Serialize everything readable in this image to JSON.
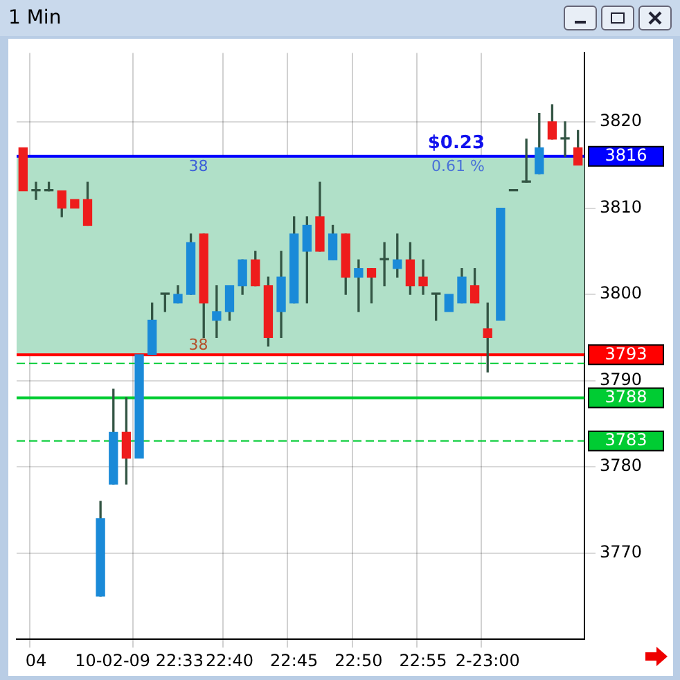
{
  "chart_data": {
    "type": "candlestick",
    "title": "1 Min",
    "categories": [
      null,
      "04",
      null,
      null,
      null,
      null,
      null,
      null,
      null,
      "10-02-09 22:33",
      null,
      null,
      null,
      null,
      null,
      null,
      "22:40",
      null,
      null,
      null,
      null,
      "22:45",
      null,
      null,
      null,
      null,
      "22:50",
      null,
      null,
      null,
      null,
      "22:55",
      null,
      null,
      null,
      null,
      "2-23:00",
      null,
      null,
      null,
      null,
      null,
      null,
      null
    ],
    "ohlc": [
      [
        3817,
        3817,
        3812,
        3812
      ],
      [
        3812,
        3813,
        3811,
        3812
      ],
      [
        3812,
        3813,
        3812,
        3812
      ],
      [
        3812,
        3812,
        3809,
        3810
      ],
      [
        3811,
        3811,
        3810,
        3810
      ],
      [
        3811,
        3813,
        3808,
        3808
      ],
      [
        3765,
        3776,
        3765,
        3774
      ],
      [
        3778,
        3789,
        3778,
        3784
      ],
      [
        3784,
        3788,
        3778,
        3781
      ],
      [
        3781,
        3793,
        3781,
        3793
      ],
      [
        3793,
        3799,
        3793,
        3797
      ],
      [
        3800,
        3800,
        3798,
        3800
      ],
      [
        3799,
        3801,
        3799,
        3800
      ],
      [
        3800,
        3807,
        3800,
        3806
      ],
      [
        3807,
        3807,
        3795,
        3799
      ],
      [
        3797,
        3801,
        3795,
        3798
      ],
      [
        3798,
        3801,
        3797,
        3801
      ],
      [
        3801,
        3804,
        3800,
        3804
      ],
      [
        3804,
        3805,
        3801,
        3801
      ],
      [
        3801,
        3802,
        3794,
        3795
      ],
      [
        3798,
        3805,
        3795,
        3802
      ],
      [
        3799,
        3809,
        3799,
        3807
      ],
      [
        3805,
        3809,
        3799,
        3808
      ],
      [
        3809,
        3813,
        3805,
        3805
      ],
      [
        3804,
        3808,
        3804,
        3807
      ],
      [
        3807,
        3807,
        3800,
        3802
      ],
      [
        3802,
        3804,
        3798,
        3803
      ],
      [
        3803,
        3803,
        3799,
        3802
      ],
      [
        3804,
        3806,
        3801,
        3804
      ],
      [
        3803,
        3807,
        3802,
        3804
      ],
      [
        3804,
        3806,
        3800,
        3801
      ],
      [
        3802,
        3804,
        3800,
        3801
      ],
      [
        3800,
        3800,
        3797,
        3800
      ],
      [
        3798,
        3800,
        3798,
        3800
      ],
      [
        3799,
        3803,
        3799,
        3802
      ],
      [
        3801,
        3803,
        3799,
        3799
      ],
      [
        3796,
        3799,
        3791,
        3795
      ],
      [
        3797,
        3810,
        3797,
        3810
      ],
      [
        3812,
        3812,
        3812,
        3812
      ],
      [
        3813,
        3818,
        3813,
        3813
      ],
      [
        3814,
        3821,
        3814,
        3817
      ],
      [
        3820,
        3822,
        3818,
        3818
      ],
      [
        3818,
        3820,
        3816,
        3818
      ],
      [
        3817,
        3819,
        3815,
        3815
      ]
    ],
    "ylim": [
      3760,
      3828
    ],
    "yticks": [
      3770,
      3780,
      3790,
      3800,
      3810,
      3820
    ],
    "grid": true,
    "bands": [
      {
        "axis": "y",
        "from": 3793,
        "to": 3816,
        "color": "#b0e0c8"
      }
    ],
    "ref_lines": [
      {
        "axis": "y",
        "value": 3816,
        "label": "3816",
        "color": "#0000ff"
      },
      {
        "axis": "y",
        "value": 3793,
        "label": "3793",
        "color": "#ff0000"
      },
      {
        "axis": "y",
        "value": 3792,
        "color": "#00cc33",
        "line_style": "dashed"
      },
      {
        "axis": "y",
        "value": 3788,
        "label": "3788",
        "color": "#00cc33"
      },
      {
        "axis": "y",
        "value": 3783,
        "label": "3783",
        "color": "#00cc33",
        "line_style": "dashed"
      }
    ],
    "annotations": [
      {
        "text": "38",
        "y": 3816
      },
      {
        "text": "38",
        "y": 3793
      },
      {
        "text": "$0.23",
        "y": 3816
      },
      {
        "text": "0.61 %",
        "y": 3816
      }
    ]
  }
}
